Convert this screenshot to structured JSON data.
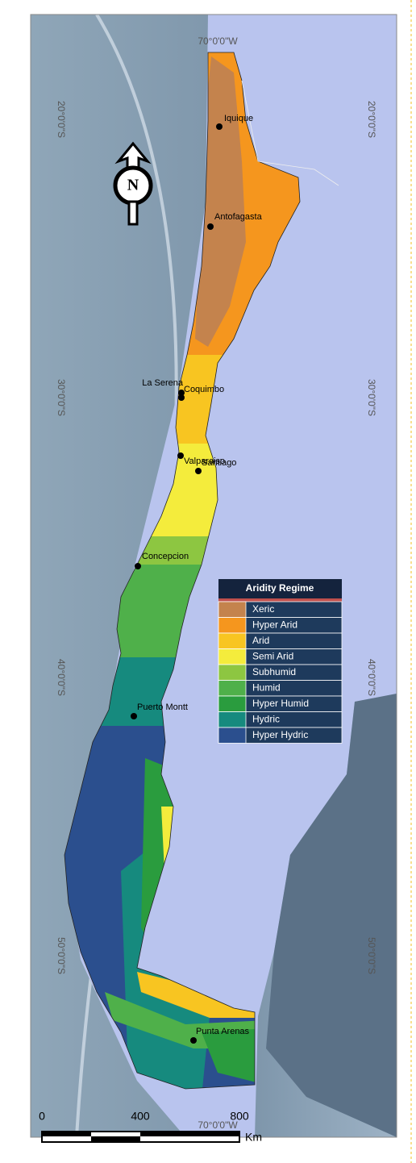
{
  "map": {
    "top_longitude_label": "70°0'0\"W",
    "bottom_longitude_label": "70°0'0\"W",
    "latitude_labels": [
      "20°0'0\"S",
      "30°0'0\"S",
      "40°0'0\"S",
      "50°0'0\"S"
    ],
    "north_arrow": "N",
    "cities": [
      "Iquique",
      "Antofagasta",
      "La Serena",
      "Coquimbo",
      "Valparaiso",
      "Santiago",
      "Concepcion",
      "Puerto Montt",
      "Punta Arenas"
    ],
    "legend": {
      "title": "Aridity Regime",
      "items": [
        {
          "name": "Xeric",
          "color": "#c4834d"
        },
        {
          "name": "Hyper Arid",
          "color": "#f5961e"
        },
        {
          "name": "Arid",
          "color": "#f8c521"
        },
        {
          "name": "Semi Arid",
          "color": "#f4ec3c"
        },
        {
          "name": "Subhumid",
          "color": "#8dc641"
        },
        {
          "name": "Humid",
          "color": "#4fb04a"
        },
        {
          "name": "Hyper Humid",
          "color": "#2a9c3e"
        },
        {
          "name": "Hydric",
          "color": "#168a7e"
        },
        {
          "name": "Hyper Hydric",
          "color": "#2b4f8e"
        }
      ]
    },
    "scale_bar": {
      "ticks": [
        0,
        400,
        800
      ],
      "unit": "Km"
    }
  }
}
